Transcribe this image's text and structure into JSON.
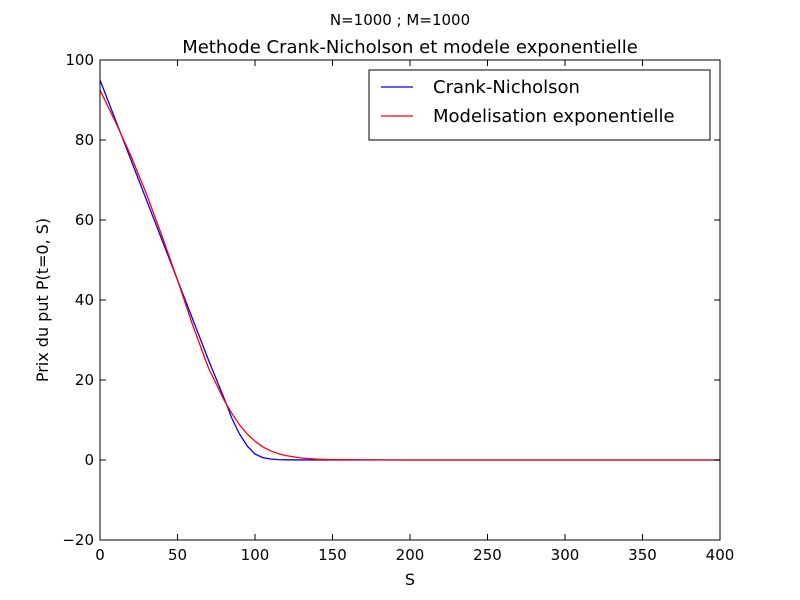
{
  "chart_data": {
    "type": "line",
    "suptitle": "N=1000 ; M=1000",
    "title": "Methode Crank-Nicholson et modele exponentielle",
    "xlabel": "S",
    "ylabel": "Prix du put P(t=0, S)",
    "xlim": [
      0,
      400
    ],
    "ylim": [
      -20,
      100
    ],
    "xticks": [
      0,
      50,
      100,
      150,
      200,
      250,
      300,
      350,
      400
    ],
    "yticks": [
      -20,
      0,
      20,
      40,
      60,
      80,
      100
    ],
    "ytick_labels": [
      "−20",
      "0",
      "20",
      "40",
      "60",
      "80",
      "100"
    ],
    "grid": false,
    "legend_position": "top-right",
    "series": [
      {
        "name": "Crank-Nicholson",
        "color": "#0000ff",
        "x": [
          0,
          10,
          20,
          30,
          40,
          50,
          60,
          70,
          80,
          85,
          90,
          95,
          100,
          105,
          110,
          115,
          120,
          130,
          140,
          150,
          200,
          250,
          300,
          350,
          400
        ],
        "y": [
          95,
          85,
          75,
          65,
          55,
          45,
          35,
          25,
          15.5,
          10.5,
          6.5,
          3.5,
          1.5,
          0.6,
          0.25,
          0.1,
          0.05,
          0.02,
          0.01,
          0,
          0,
          0,
          0,
          0,
          0
        ]
      },
      {
        "name": "Modelisation exponentielle",
        "color": "#ff0000",
        "x": [
          0,
          10,
          20,
          30,
          40,
          50,
          60,
          70,
          80,
          85,
          90,
          95,
          100,
          105,
          110,
          115,
          120,
          130,
          140,
          150,
          200,
          250,
          300,
          350,
          400
        ],
        "y": [
          92.5,
          84.5,
          76,
          66.5,
          56,
          45,
          33.5,
          23,
          15,
          11.7,
          8.8,
          6.5,
          4.7,
          3.3,
          2.3,
          1.6,
          1.1,
          0.5,
          0.2,
          0.1,
          0,
          0,
          0,
          0,
          0
        ]
      }
    ]
  }
}
